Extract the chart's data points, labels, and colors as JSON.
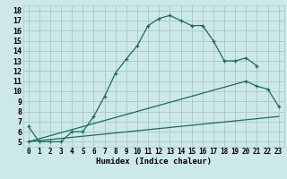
{
  "title": "",
  "xlabel": "Humidex (Indice chaleur)",
  "bg_color": "#cce8e8",
  "grid_color": "#aacccc",
  "line_color": "#1a6b5a",
  "xlim": [
    -0.5,
    23.5
  ],
  "ylim": [
    4.5,
    18.5
  ],
  "xticks": [
    0,
    1,
    2,
    3,
    4,
    5,
    6,
    7,
    8,
    9,
    10,
    11,
    12,
    13,
    14,
    15,
    16,
    17,
    18,
    19,
    20,
    21,
    22,
    23
  ],
  "yticks": [
    5,
    6,
    7,
    8,
    9,
    10,
    11,
    12,
    13,
    14,
    15,
    16,
    17,
    18
  ],
  "curve1_x": [
    0,
    1,
    2,
    3,
    4,
    5,
    6,
    7,
    8,
    9,
    10,
    11,
    12,
    13,
    14,
    15,
    16,
    17,
    18,
    19,
    20,
    21
  ],
  "curve1_y": [
    6.5,
    5.0,
    5.0,
    5.0,
    6.0,
    6.0,
    7.5,
    9.5,
    11.8,
    13.2,
    14.5,
    16.5,
    17.2,
    17.5,
    17.0,
    16.5,
    16.5,
    15.0,
    13.0,
    13.0,
    13.3,
    12.5
  ],
  "curve2_x": [
    0,
    20,
    21,
    22,
    23
  ],
  "curve2_y": [
    5.0,
    11.0,
    10.5,
    10.2,
    8.5
  ],
  "curve3_x": [
    0,
    23
  ],
  "curve3_y": [
    5.0,
    7.5
  ],
  "xlabel_fontsize": 6.5,
  "tick_fontsize": 5.5
}
